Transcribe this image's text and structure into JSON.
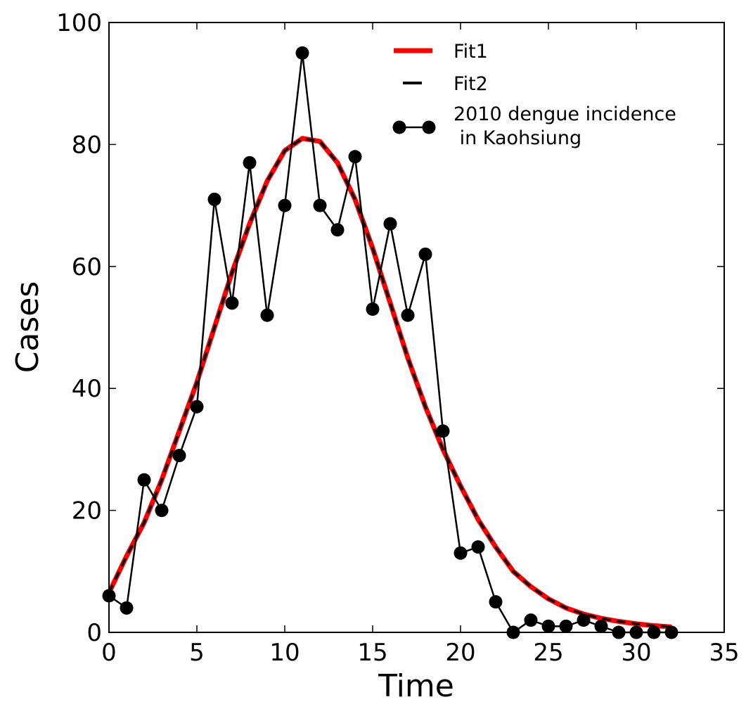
{
  "chart_data": {
    "type": "line",
    "xlabel": "Time",
    "ylabel": "Cases",
    "xlim": [
      0,
      35
    ],
    "ylim": [
      0,
      100
    ],
    "xticks": [
      0,
      5,
      10,
      15,
      20,
      25,
      30,
      35
    ],
    "yticks": [
      0,
      20,
      40,
      60,
      80,
      100
    ],
    "grid": false,
    "legend_position": "top-right",
    "series": [
      {
        "name": "Fit1",
        "style": "solid",
        "color": "#ff0000",
        "x": [
          0,
          1,
          2,
          3,
          4,
          5,
          6,
          7,
          8,
          9,
          10,
          11,
          12,
          13,
          14,
          15,
          16,
          17,
          18,
          19,
          20,
          21,
          22,
          23,
          24,
          25,
          26,
          27,
          28,
          29,
          30,
          31,
          32
        ],
        "y": [
          6.5,
          12.5,
          18,
          25,
          33,
          41,
          50,
          59,
          67,
          74,
          79,
          81,
          80.5,
          77,
          71,
          63,
          54,
          45,
          37,
          30,
          24,
          18.5,
          14,
          10,
          7.5,
          5.5,
          4,
          3,
          2.3,
          1.8,
          1.4,
          1.1,
          0.9
        ]
      },
      {
        "name": "Fit2",
        "style": "dashed",
        "color": "#000000",
        "x": [
          0,
          1,
          2,
          3,
          4,
          5,
          6,
          7,
          8,
          9,
          10,
          11,
          12,
          13,
          14,
          15,
          16,
          17,
          18,
          19,
          20,
          21,
          22,
          23,
          24,
          25,
          26,
          27,
          28,
          29,
          30,
          31,
          32
        ],
        "y": [
          6.5,
          12.5,
          18,
          25,
          33,
          41,
          50,
          59,
          67,
          74,
          79,
          81,
          80.5,
          77,
          71,
          63,
          54,
          45,
          37,
          30,
          24,
          18.5,
          14,
          10,
          7.5,
          5.5,
          4,
          3,
          2.3,
          1.8,
          1.4,
          1.1,
          0.9
        ]
      },
      {
        "name": "2010 dengue incidence\n in Kaohsiung",
        "style": "line-markers",
        "color": "#000000",
        "x": [
          0,
          1,
          2,
          3,
          4,
          5,
          6,
          7,
          8,
          9,
          10,
          11,
          12,
          13,
          14,
          15,
          16,
          17,
          18,
          19,
          20,
          21,
          22,
          23,
          24,
          25,
          26,
          27,
          28,
          29,
          30,
          31,
          32
        ],
        "y": [
          6,
          4,
          25,
          20,
          29,
          37,
          71,
          54,
          77,
          52,
          70,
          95,
          70,
          66,
          78,
          53,
          67,
          52,
          62,
          33,
          13,
          14,
          5,
          0,
          2,
          1,
          1,
          2,
          1,
          0,
          0,
          0,
          0
        ]
      }
    ],
    "legend": {
      "items": [
        {
          "label_lines": [
            "Fit1"
          ]
        },
        {
          "label_lines": [
            "Fit2"
          ]
        },
        {
          "label_lines": [
            "2010 dengue incidence",
            " in Kaohsiung"
          ]
        }
      ]
    }
  }
}
